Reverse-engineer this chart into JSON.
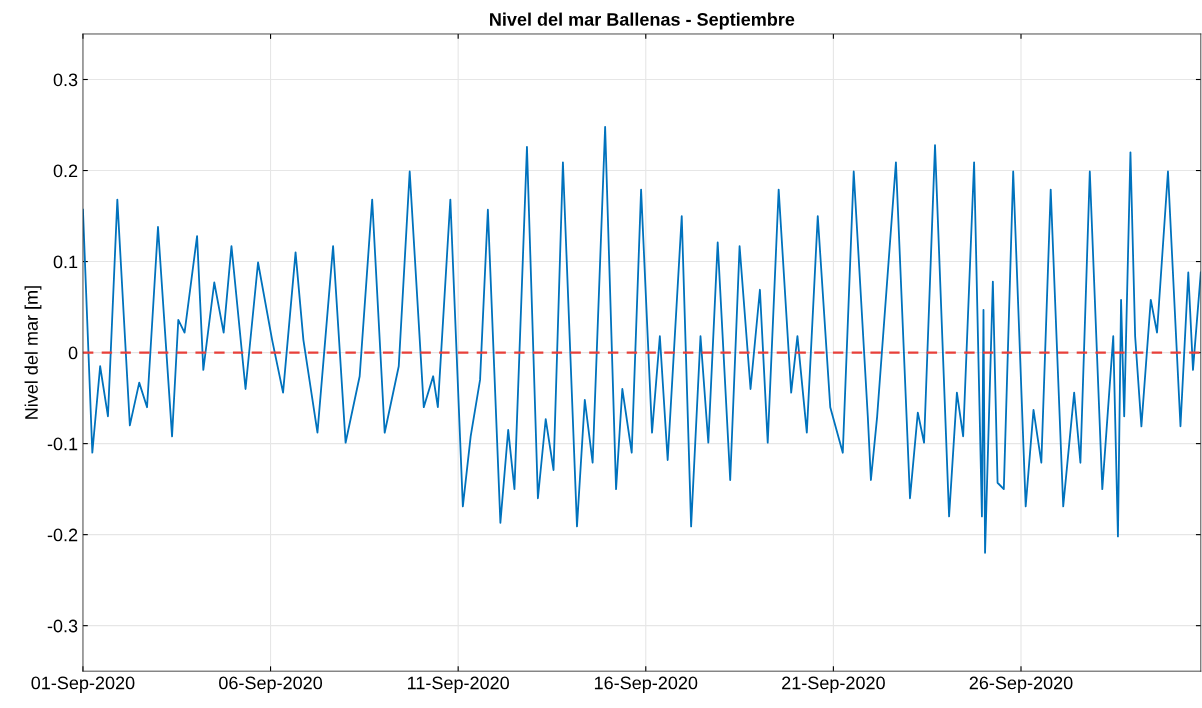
{
  "chart_data": {
    "type": "line",
    "title": "Nivel del mar Ballenas - Septiembre",
    "ylabel": "Nivel del mar [m]",
    "x": [
      "2020-09-01T00:00",
      "2020-09-01T06:00",
      "2020-09-01T11:00",
      "2020-09-01T16:00",
      "2020-09-01T22:00",
      "2020-09-02T06:00",
      "2020-09-02T12:00",
      "2020-09-02T17:00",
      "2020-09-03T00:00",
      "2020-09-03T09:00",
      "2020-09-03T13:00",
      "2020-09-03T17:00",
      "2020-09-04T01:00",
      "2020-09-04T05:00",
      "2020-09-04T12:00",
      "2020-09-04T18:00",
      "2020-09-04T23:00",
      "2020-09-05T08:00",
      "2020-09-05T16:00",
      "2020-09-06T01:00",
      "2020-09-06T08:00",
      "2020-09-06T16:00",
      "2020-09-06T21:00",
      "2020-09-07T06:00",
      "2020-09-07T16:00",
      "2020-09-08T00:00",
      "2020-09-08T09:00",
      "2020-09-08T17:00",
      "2020-09-09T01:00",
      "2020-09-09T10:00",
      "2020-09-09T17:00",
      "2020-09-10T02:00",
      "2020-09-10T08:00",
      "2020-09-10T11:00",
      "2020-09-10T19:00",
      "2020-09-11T03:00",
      "2020-09-11T08:00",
      "2020-09-11T14:00",
      "2020-09-11T19:00",
      "2020-09-12T03:00",
      "2020-09-12T08:00",
      "2020-09-12T12:00",
      "2020-09-12T20:00",
      "2020-09-13T03:00",
      "2020-09-13T08:00",
      "2020-09-13T13:00",
      "2020-09-13T19:00",
      "2020-09-14T04:00",
      "2020-09-14T09:00",
      "2020-09-14T14:00",
      "2020-09-14T22:00",
      "2020-09-15T05:00",
      "2020-09-15T09:00",
      "2020-09-15T15:00",
      "2020-09-15T21:00",
      "2020-09-16T04:00",
      "2020-09-16T09:00",
      "2020-09-16T14:00",
      "2020-09-16T23:00",
      "2020-09-17T05:00",
      "2020-09-17T11:00",
      "2020-09-17T16:00",
      "2020-09-17T22:00",
      "2020-09-18T06:00",
      "2020-09-18T12:00",
      "2020-09-18T19:00",
      "2020-09-19T01:00",
      "2020-09-19T06:00",
      "2020-09-19T13:00",
      "2020-09-19T21:00",
      "2020-09-20T01:00",
      "2020-09-20T07:00",
      "2020-09-20T14:00",
      "2020-09-20T22:00",
      "2020-09-21T06:00",
      "2020-09-21T13:00",
      "2020-09-21T22:00",
      "2020-09-22T00:00",
      "2020-09-22T04:00",
      "2020-09-22T16:00",
      "2020-09-23T01:00",
      "2020-09-23T06:00",
      "2020-09-23T10:00",
      "2020-09-23T17:00",
      "2020-09-24T02:00",
      "2020-09-24T07:00",
      "2020-09-24T11:00",
      "2020-09-24T18:00",
      "2020-09-24T23:00",
      "2020-09-25T00:00",
      "2020-09-25T01:00",
      "2020-09-25T06:00",
      "2020-09-25T09:00",
      "2020-09-25T13:00",
      "2020-09-25T19:00",
      "2020-09-26T03:00",
      "2020-09-26T08:00",
      "2020-09-26T13:00",
      "2020-09-26T19:00",
      "2020-09-27T03:00",
      "2020-09-27T10:00",
      "2020-09-27T14:00",
      "2020-09-27T20:00",
      "2020-09-28T04:00",
      "2020-09-28T11:00",
      "2020-09-28T14:00",
      "2020-09-28T16:00",
      "2020-09-28T18:00",
      "2020-09-28T22:00",
      "2020-09-29T01:00",
      "2020-09-29T05:00",
      "2020-09-29T11:00",
      "2020-09-29T15:00",
      "2020-09-29T22:00",
      "2020-09-30T06:00",
      "2020-09-30T11:00",
      "2020-09-30T14:00",
      "2020-09-30T19:00"
    ],
    "series": [
      {
        "color": "#0072bd",
        "values": [
          0.157,
          -0.11,
          -0.015,
          -0.07,
          0.168,
          -0.08,
          -0.033,
          -0.06,
          0.138,
          -0.092,
          0.036,
          0.022,
          0.128,
          -0.019,
          0.077,
          0.022,
          0.117,
          -0.04,
          0.099,
          0.014,
          -0.044,
          0.11,
          0.014,
          -0.088,
          0.117,
          -0.099,
          -0.026,
          0.168,
          -0.088,
          -0.015,
          0.199,
          -0.06,
          -0.026,
          -0.06,
          0.168,
          -0.169,
          -0.092,
          -0.03,
          0.157,
          -0.187,
          -0.085,
          -0.15,
          0.226,
          -0.16,
          -0.073,
          -0.129,
          0.209,
          -0.191,
          -0.052,
          -0.121,
          0.248,
          -0.15,
          -0.04,
          -0.11,
          0.179,
          -0.088,
          0.018,
          -0.118,
          0.15,
          -0.191,
          0.018,
          -0.099,
          0.121,
          -0.14,
          0.117,
          -0.04,
          0.069,
          -0.099,
          0.179,
          -0.044,
          0.018,
          -0.088,
          0.15,
          -0.06,
          -0.11,
          0.199,
          -0.07,
          -0.14,
          -0.07,
          0.209,
          -0.16,
          -0.066,
          -0.099,
          0.228,
          -0.18,
          -0.044,
          -0.092,
          0.209,
          -0.18,
          0.047,
          -0.22,
          0.078,
          -0.143,
          -0.15,
          0.199,
          -0.169,
          -0.063,
          -0.121,
          0.179,
          -0.169,
          -0.044,
          -0.121,
          0.199,
          -0.15,
          0.018,
          -0.202,
          0.058,
          -0.07,
          0.22,
          0.018,
          -0.081,
          0.058,
          0.022,
          0.199,
          -0.081,
          0.088,
          -0.019,
          0.088
        ]
      }
    ],
    "xlim": [
      "2020-09-01T00:00",
      "2020-09-30T19:00"
    ],
    "xticks": [
      {
        "value": "2020-09-01",
        "label": "01-Sep-2020"
      },
      {
        "value": "2020-09-06",
        "label": "06-Sep-2020"
      },
      {
        "value": "2020-09-11",
        "label": "11-Sep-2020"
      },
      {
        "value": "2020-09-16",
        "label": "16-Sep-2020"
      },
      {
        "value": "2020-09-21",
        "label": "21-Sep-2020"
      },
      {
        "value": "2020-09-26",
        "label": "26-Sep-2020"
      }
    ],
    "ylim": [
      -0.35,
      0.35
    ],
    "yticks": [
      -0.3,
      -0.2,
      -0.1,
      0,
      0.1,
      0.2,
      0.3
    ],
    "grid": true,
    "marker": "none",
    "line_style": "solid",
    "ref_lines": [
      {
        "axis": "y",
        "value": 0,
        "color": "#e8403a",
        "line_style": "dashed"
      }
    ]
  }
}
